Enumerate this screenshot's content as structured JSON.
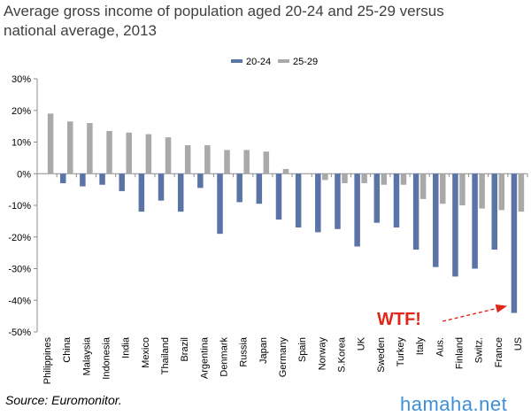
{
  "header": {
    "title": "Average gross income of population aged 20-24 and 25-29 versus national average, 2013"
  },
  "footer": {
    "source": "Source: Euromonitor.",
    "watermark": "hamaha.net"
  },
  "colors": {
    "series_20_24": "#5b74a8",
    "series_25_29": "#a9a9a9",
    "annotation": "#e0261b",
    "watermark": "#3e8fd8"
  },
  "chart_data": {
    "type": "bar",
    "title": "Average gross income of population aged 20-24 and 25-29 versus national average, 2013",
    "xlabel": "",
    "ylabel": "",
    "ylim": [
      -50,
      30
    ],
    "yticks": [
      30,
      20,
      10,
      0,
      -10,
      -20,
      -30,
      -40,
      -50
    ],
    "ytick_labels": [
      "30%",
      "20%",
      "10%",
      "0%",
      "-10%",
      "-20%",
      "-30%",
      "-40%",
      "-50%"
    ],
    "legend_position": "top-center",
    "grid": false,
    "categories": [
      "Philippines",
      "China",
      "Malaysia",
      "Indonesia",
      "India",
      "Mexico",
      "Thailand",
      "Brazil",
      "Argentina",
      "Denmark",
      "Russia",
      "Japan",
      "Germany",
      "Spain",
      "Norway",
      "S.Korea",
      "UK",
      "Sweden",
      "Turkey",
      "Italy",
      "Aus.",
      "Finland",
      "Switz.",
      "France",
      "US"
    ],
    "series": [
      {
        "name": "20-24",
        "values": [
          0,
          -3,
          -4,
          -3.5,
          -5.5,
          -12,
          -8.5,
          -12,
          -4.5,
          -19,
          -9,
          -9.5,
          -14.5,
          -17,
          -18.5,
          -17.5,
          -23,
          -15.5,
          -17,
          -24,
          -29.5,
          -32.5,
          -30,
          -24,
          -44
        ]
      },
      {
        "name": "25-29",
        "values": [
          19,
          16.5,
          16,
          13.5,
          13,
          12.5,
          11.5,
          9,
          9,
          7.5,
          7.5,
          7,
          1.5,
          0,
          -2,
          -3,
          -3,
          -3.5,
          -3.5,
          -8,
          -9.5,
          -10,
          -11,
          -11.5,
          -12
        ]
      }
    ],
    "annotation": {
      "text": "WTF!",
      "target_category": "US",
      "target_series": "20-24"
    }
  }
}
